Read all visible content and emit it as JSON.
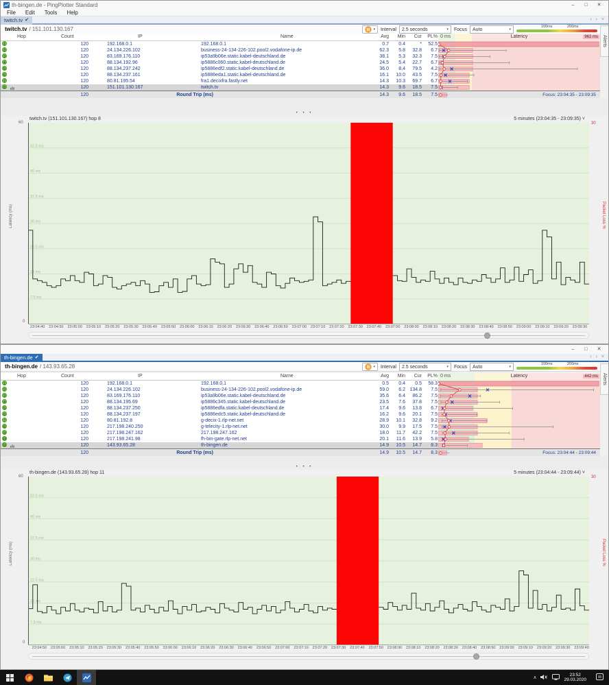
{
  "taskbar": {
    "time": "23:52",
    "date": "29.03.2020"
  },
  "windows": [
    {
      "title": "th-bingen.de - PingPlotter Standard",
      "window_controls": {
        "min": "–",
        "max": "□",
        "close": "✕"
      },
      "menu": [
        "File",
        "Edit",
        "Tools",
        "Help"
      ],
      "tab": "twitch.tv",
      "check": "✔",
      "nav_arrows": "‹ › ˅",
      "target_host": "twitch.tv",
      "target_ip": "/ 151.101.130.167",
      "alerts_label": "Alerts",
      "toolbar": {
        "interval_label": "Interval",
        "interval_value": "2.5 seconds",
        "focus_label": "Focus",
        "focus_value": "Auto",
        "legend_100": "100ms",
        "legend_200": "200ms",
        "dropdown_glyph": "▾"
      },
      "splitter_dots": "• • •",
      "table": {
        "headers": {
          "hop": "Hop",
          "count": "Count",
          "ip": "IP",
          "name": "Name",
          "avg": "Avg",
          "min": "Min",
          "cur": "Cur",
          "pl": "PL%",
          "latency": "Latency"
        },
        "scale_left": "0 ms",
        "scale_right": "962 ms",
        "chart_zones": {
          "green": 10.4,
          "yellow": 20.8
        },
        "rows": [
          {
            "hop": "1",
            "count": "120",
            "ip": "192.168.0.1",
            "name": "192.168.0.1",
            "avg": "0.7",
            "min": "0.4",
            "cur": "*",
            "pl": "52.5",
            "chart": {
              "full": true,
              "bar": 99,
              "dot": 0.5,
              "x": null,
              "wmin": 0.2,
              "wmax": 3
            }
          },
          {
            "hop": "2",
            "count": "120",
            "ip": "24.134.226.102",
            "name": "business-24-134-226-102.pool2.vodafone-ip.de",
            "avg": "62.3",
            "min": "5.8",
            "cur": "32.8",
            "pl": "6.7",
            "chart": {
              "bar": 21,
              "dot": 6.5,
              "x": 3.4,
              "wmin": 0.6,
              "wmax": 42
            }
          },
          {
            "hop": "3",
            "count": "120",
            "ip": "83.169.176.110",
            "name": "ip53a9b06e.static.kabel-deutschland.de",
            "avg": "38.1",
            "min": "5.3",
            "cur": "32.3",
            "pl": "7.5",
            "chart": {
              "bar": 21,
              "dot": 4.0,
              "x": 3.4,
              "wmin": 0.6,
              "wmax": 32
            }
          },
          {
            "hop": "4",
            "count": "120",
            "ip": "88.134.192.96",
            "name": "ip5886c060.static.kabel-deutschland.de",
            "avg": "24.5",
            "min": "5.4",
            "cur": "22.7",
            "pl": "6.7",
            "chart": {
              "bar": 21,
              "dot": 2.5,
              "x": 2.4,
              "wmin": 0.6,
              "wmax": 44
            }
          },
          {
            "hop": "5",
            "count": "120",
            "ip": "88.134.237.242",
            "name": "ip5886edf2.static.kabel-deutschland.de",
            "avg": "36.0",
            "min": "8.4",
            "cur": "79.5",
            "pl": "4.2",
            "chart": {
              "bar": 21,
              "dot": 3.7,
              "x": 8.3,
              "wmin": 0.9,
              "wmax": 86
            }
          },
          {
            "hop": "6",
            "count": "120",
            "ip": "88.134.237.161",
            "name": "ip5886eda1.static.kabel-deutschland.de",
            "avg": "16.1",
            "min": "10.0",
            "cur": "43.5",
            "pl": "7.5",
            "chart": {
              "bar": 19,
              "dot": 1.7,
              "x": 4.5,
              "wmin": 1.0,
              "wmax": 22
            }
          },
          {
            "hop": "7",
            "count": "120",
            "ip": "80.81.195.54",
            "name": "fra1.decixfra.fastly.net",
            "avg": "14.3",
            "min": "10.3",
            "cur": "69.7",
            "pl": "6.7",
            "chart": {
              "bar": 19,
              "dot": 1.5,
              "x": 7.2,
              "wmin": 1.1,
              "wmax": 18
            }
          },
          {
            "hop": "8",
            "count": "120",
            "ip": "151.101.130.167",
            "name": "twitch.tv",
            "avg": "14.3",
            "min": "9.6",
            "cur": "18.5",
            "pl": "7.5",
            "selected": true,
            "chart": {
              "bar": 19,
              "dot": 1.5,
              "x": 1.9,
              "wmin": 1.0,
              "wmax": 12
            }
          }
        ],
        "footer": {
          "count": "120",
          "label": "Round Trip (ms)",
          "avg": "14.3",
          "min": "9.6",
          "cur": "18.5",
          "pl": "7.5",
          "focus": "Focus: 23:04:35 - 23:09:35",
          "chart": {
            "bar": 5,
            "dot": 1.5,
            "wmin": 1,
            "wmax": 6
          }
        }
      },
      "graph": {
        "title": "twitch.tv (151.101.130.167) hop 8",
        "range_label": "5 minutes (23:04:35 - 23:09:35)",
        "range_glyph": "˅",
        "y_max_label": "60",
        "y_min_label": "0",
        "y_label": "Latency (ms)",
        "right_max_label": "30",
        "right_label": "Packet Loss %",
        "y_max": 60,
        "y_grid": [
          {
            "v": 7.5,
            "label": "7.5 ms"
          },
          {
            "v": 15,
            "label": "15 ms"
          },
          {
            "v": 22.5,
            "label": "22.5 ms"
          },
          {
            "v": 30,
            "label": "30 ms"
          },
          {
            "v": 37.5,
            "label": "37.5 ms"
          },
          {
            "v": 45,
            "label": "45 ms"
          },
          {
            "v": 52.5,
            "label": "52.5 ms"
          }
        ],
        "loss": {
          "start": 0.575,
          "end": 0.65
        },
        "tick_first_s": 5,
        "tick_step_s": 10,
        "total_s": 300,
        "ticks": [
          "23:04:40",
          "23:04:50",
          "23:05:00",
          "23:05:10",
          "23:05:20",
          "23:05:30",
          "23:05:40",
          "23:05:50",
          "23:06:00",
          "23:06:10",
          "23:06:20",
          "23:06:30",
          "23:06:40",
          "23:06:50",
          "23:07:00",
          "23:07:10",
          "23:07:20",
          "23:07:30",
          "23:07:40",
          "23:07:50",
          "23:08:00",
          "23:08:10",
          "23:08:20",
          "23:08:30",
          "23:08:40",
          "23:08:50",
          "23:09:00",
          "23:09:10",
          "23:09:20",
          "23:09:30"
        ],
        "scroll_thumb_pct": 82,
        "values": [
          28,
          13.5,
          13,
          12.5,
          11.5,
          11,
          11.5,
          13.5,
          13,
          14.5,
          13,
          12.5,
          15.5,
          15,
          11.5,
          12,
          14.5,
          14,
          11,
          10.5,
          11.5,
          12,
          12.5,
          11.5,
          13,
          12,
          9.5,
          9.7,
          11.5,
          12.5,
          11,
          13.5,
          9.5,
          9.8,
          13.5,
          14.5,
          12,
          11.5,
          11.8,
          19.5,
          18.5,
          18,
          11,
          12,
          16.5,
          18,
          15.5,
          17.5,
          12.5,
          12,
          11,
          15.5,
          15,
          11.5,
          10.8,
          12.2,
          13.8,
          13,
          12.5,
          12.8,
          13.2,
          32,
          30.5,
          11.5,
          12,
          12.5,
          13.2,
          12.2,
          12.8,
          null,
          null,
          null,
          null,
          null,
          null,
          null,
          null,
          null,
          14.5,
          13,
          12.8,
          16.5,
          14,
          12.5,
          13.2,
          12.8,
          15.8,
          13.5,
          12.2,
          13.8,
          12.5,
          11.8,
          13.8,
          12.5,
          12.2,
          13.2,
          12.8,
          14.8,
          13.8,
          12.5,
          13.5,
          16.8,
          12.5,
          13.2,
          17,
          12.8,
          14.8,
          16.2,
          12.2,
          13,
          28,
          26,
          13.5,
          18.5,
          11.8,
          14,
          13.2,
          12.5,
          18.5,
          12
        ]
      }
    },
    {
      "title": "",
      "window_controls": {
        "min": "–",
        "max": "□",
        "close": "✕"
      },
      "tab": "th-bingen.de",
      "check": "✔",
      "nav_arrows": "‹ › ˅",
      "target_host": "th-bingen.de",
      "target_ip": "/ 143.93.65.28",
      "alerts_label": "Alerts",
      "toolbar": {
        "interval_label": "Interval",
        "interval_value": "2.5 seconds",
        "focus_label": "Focus",
        "focus_value": "Auto",
        "legend_100": "100ms",
        "legend_200": "200ms",
        "dropdown_glyph": "▾"
      },
      "splitter_dots": "• • •",
      "table": {
        "headers": {
          "hop": "Hop",
          "count": "Count",
          "ip": "IP",
          "name": "Name",
          "avg": "Avg",
          "min": "Min",
          "cur": "Cur",
          "pl": "PL%",
          "latency": "Latency"
        },
        "scale_left": "0 ms",
        "scale_right": "442 ms",
        "chart_zones": {
          "green": 22.6,
          "yellow": 45.2
        },
        "rows": [
          {
            "hop": "1",
            "count": "120",
            "ip": "192.168.0.1",
            "name": "192.168.0.1",
            "avg": "0.5",
            "min": "0.4",
            "cur": "0.5",
            "pl": "58.3",
            "chart": {
              "full": true,
              "bar": 99,
              "dot": 0.3,
              "x": null,
              "wmin": 0.1,
              "wmax": 1.5
            }
          },
          {
            "hop": "2",
            "count": "120",
            "ip": "24.134.226.102",
            "name": "business-24-134-226-102.pool2.vodafone-ip.de",
            "avg": "59.0",
            "min": "6.2",
            "cur": "134.8",
            "pl": "7.5",
            "chart": {
              "bar": 24,
              "dot": 13.3,
              "x": 30.5,
              "wmin": 1.4,
              "wmax": 96
            }
          },
          {
            "hop": "3",
            "count": "120",
            "ip": "83.169.176.110",
            "name": "ip53a9b06e.static.kabel-deutschland.de",
            "avg": "35.6",
            "min": "6.4",
            "cur": "86.2",
            "pl": "7.5",
            "chart": {
              "bar": 24,
              "dot": 8.0,
              "x": 19.5,
              "wmin": 1.4,
              "wmax": 26
            }
          },
          {
            "hop": "4",
            "count": "120",
            "ip": "88.134.195.69",
            "name": "ip5886c345.static.kabel-deutschland.de",
            "avg": "23.5",
            "min": "7.6",
            "cur": "37.8",
            "pl": "7.5",
            "chart": {
              "bar": 24,
              "dot": 5.3,
              "x": 8.6,
              "wmin": 1.7,
              "wmax": 38
            }
          },
          {
            "hop": "5",
            "count": "120",
            "ip": "88.134.237.250",
            "name": "ip5886edfa.static.kabel-deutschland.de",
            "avg": "17.4",
            "min": "9.6",
            "cur": "13.8",
            "pl": "6.7",
            "chart": {
              "bar": 21,
              "dot": 3.9,
              "x": 3.1,
              "wmin": 2.2,
              "wmax": 46
            }
          },
          {
            "hop": "6",
            "count": "120",
            "ip": "88.134.237.197",
            "name": "ip5886edc5.static.kabel-deutschland.de",
            "avg": "16.2",
            "min": "9.6",
            "cur": "20.1",
            "pl": "7.5",
            "chart": {
              "bar": 24,
              "dot": 3.7,
              "x": 4.5,
              "wmin": 2.2,
              "wmax": 24
            }
          },
          {
            "hop": "7",
            "count": "120",
            "ip": "80.81.192.8",
            "name": "g-decix-1.rlp-net.net",
            "avg": "28.9",
            "min": "10.1",
            "cur": "32.8",
            "pl": "9.2",
            "chart": {
              "bar": 30,
              "dot": 6.5,
              "x": 7.4,
              "wmin": 2.3,
              "wmax": 30
            }
          },
          {
            "hop": "8",
            "count": "120",
            "ip": "217.198.240.250",
            "name": "g-telecity-1.rlp-net.net",
            "avg": "30.0",
            "min": "9.9",
            "cur": "17.5",
            "pl": "7.5",
            "chart": {
              "bar": 24,
              "dot": 6.8,
              "x": 4.0,
              "wmin": 2.2,
              "wmax": 71
            }
          },
          {
            "hop": "9",
            "count": "120",
            "ip": "217.198.247.162",
            "name": "217.198.247.162",
            "avg": "18.0",
            "min": "11.7",
            "cur": "42.2",
            "pl": "7.5",
            "chart": {
              "bar": 24,
              "dot": 4.1,
              "x": 9.5,
              "wmin": 2.6,
              "wmax": 44
            }
          },
          {
            "hop": "10",
            "count": "120",
            "ip": "217.198.241.98",
            "name": "fh-bin-gate.rlp-net.net",
            "avg": "20.1",
            "min": "11.6",
            "cur": "13.9",
            "pl": "5.8",
            "chart": {
              "bar": 18.5,
              "dot": 4.5,
              "x": 3.1,
              "wmin": 2.6,
              "wmax": 53
            }
          },
          {
            "hop": "11",
            "count": "120",
            "ip": "143.93.65.28",
            "name": "th-bingen.de",
            "avg": "14.9",
            "min": "10.5",
            "cur": "14.7",
            "pl": "8.3",
            "selected": true,
            "chart": {
              "bar": 27,
              "dot": 3.4,
              "x": 3.3,
              "wmin": 2.4,
              "wmax": 18
            }
          }
        ],
        "footer": {
          "count": "120",
          "label": "Round Trip (ms)",
          "avg": "14.9",
          "min": "10.5",
          "cur": "14.7",
          "pl": "8.3",
          "focus": "Focus: 23:04:44 - 23:09:44",
          "chart": {
            "bar": 5,
            "dot": 1.5,
            "wmin": 1,
            "wmax": 7
          }
        }
      },
      "graph": {
        "title": "th-bingen.de (143.93.65.28) hop 11",
        "range_label": "5 minutes (23:04:44 - 23:09:44)",
        "range_glyph": "˅",
        "y_max_label": "60",
        "y_min_label": "0",
        "y_label": "Latency (ms)",
        "right_max_label": "30",
        "right_label": "Packet Loss %",
        "y_max": 60,
        "y_grid": [
          {
            "v": 7.5,
            "label": "7.5 ms"
          },
          {
            "v": 15,
            "label": "15 ms"
          },
          {
            "v": 22.5,
            "label": "22.5 ms"
          },
          {
            "v": 30,
            "label": "30 ms"
          },
          {
            "v": 37.5,
            "label": "37.5 ms"
          },
          {
            "v": 45,
            "label": "45 ms"
          },
          {
            "v": 52.5,
            "label": "52.5 ms"
          }
        ],
        "loss": {
          "start": 0.55,
          "end": 0.625
        },
        "tick_first_s": 6,
        "tick_step_s": 10,
        "total_s": 300,
        "ticks": [
          "23:04:50",
          "23:05:00",
          "23:05:10",
          "23:05:20",
          "23:05:30",
          "23:05:40",
          "23:05:50",
          "23:06:00",
          "23:06:10",
          "23:06:20",
          "23:06:30",
          "23:06:40",
          "23:06:50",
          "23:07:00",
          "23:07:10",
          "23:07:20",
          "23:07:30",
          "23:07:40",
          "23:07:50",
          "23:08:00",
          "23:08:10",
          "23:08:20",
          "23:08:30",
          "23:08:40",
          "23:08:50",
          "23:09:00",
          "23:09:10",
          "23:09:20",
          "23:09:30",
          "23:09:40"
        ],
        "scroll_thumb_pct": 80,
        "values": [
          13,
          21.5,
          12,
          11.5,
          13.8,
          12.5,
          11.2,
          13.5,
          12.2,
          14.8,
          12.5,
          11.8,
          13.2,
          12.8,
          11.5,
          15.5,
          12.2,
          13.8,
          11.8,
          12.5,
          22,
          21,
          12.5,
          13.2,
          11.8,
          14.2,
          12.8,
          11.5,
          13.5,
          12.2,
          15.8,
          12.8,
          11.2,
          13.8,
          12.5,
          14.5,
          11.8,
          12.2,
          13.5,
          12.8,
          11.5,
          14.8,
          13.2,
          12.5,
          11.8,
          15.2,
          12.8,
          13.5,
          11.2,
          12.8,
          14.2,
          12.2,
          13.8,
          11.5,
          12.5,
          15.5,
          13.2,
          11.8,
          12.8,
          14.5,
          12.2,
          11.5,
          13.8,
          12.5,
          13.2,
          12.8,
          null,
          null,
          null,
          null,
          null,
          null,
          null,
          null,
          null,
          13.5,
          12.8,
          15.2,
          13.8,
          12.5,
          14.2,
          12.8,
          18.5,
          13.2,
          12.5,
          14.8,
          12.2,
          13.5,
          15.8,
          12.8,
          11.5,
          13.2,
          14.5,
          12.8,
          12.2,
          15.5,
          13.8,
          12.5,
          11.8,
          14.2,
          13.5,
          12.8,
          16.5,
          12.2,
          13.8,
          26.5,
          25,
          13.2,
          19.5,
          12.8,
          14.5,
          12.2,
          13.5,
          17.8,
          12.8,
          13.2,
          12.5,
          20,
          14,
          12.5
        ]
      }
    }
  ]
}
